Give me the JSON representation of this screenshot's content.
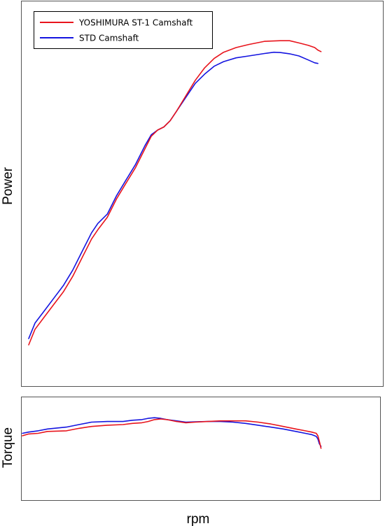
{
  "chart_data": [
    {
      "type": "line",
      "panel": "power",
      "title": "",
      "xlabel": "",
      "ylabel": "Power",
      "legend_position": "top-left",
      "grid": false,
      "x_tick_labels": false,
      "y_tick_labels": false,
      "xlim": [
        0,
        100
      ],
      "ylim": [
        0,
        100
      ],
      "series": [
        {
          "name": "YOSHIMURA ST-1 Camshaft",
          "color": "#e8141c",
          "points": [
            [
              0,
              0
            ],
            [
              2,
              5
            ],
            [
              5,
              9
            ],
            [
              8,
              13
            ],
            [
              11,
              17
            ],
            [
              14,
              22
            ],
            [
              17,
              28
            ],
            [
              20,
              34
            ],
            [
              22,
              37
            ],
            [
              25,
              41
            ],
            [
              28,
              47
            ],
            [
              31,
              52
            ],
            [
              34,
              57
            ],
            [
              37,
              63
            ],
            [
              39,
              67
            ],
            [
              41,
              69
            ],
            [
              43,
              70
            ],
            [
              45,
              72
            ],
            [
              47,
              75
            ],
            [
              50,
              80
            ],
            [
              53,
              85
            ],
            [
              56,
              89
            ],
            [
              59,
              92
            ],
            [
              62,
              94
            ],
            [
              66,
              95.5
            ],
            [
              70,
              96.5
            ],
            [
              75,
              97.5
            ],
            [
              80,
              97.7
            ],
            [
              83,
              97.7
            ],
            [
              86,
              97
            ],
            [
              89,
              96.2
            ],
            [
              91,
              95.5
            ],
            [
              92,
              94.7
            ],
            [
              93,
              94.2
            ]
          ]
        },
        {
          "name": "STD Camshaft",
          "color": "#1414e0",
          "points": [
            [
              0,
              2
            ],
            [
              2,
              7
            ],
            [
              5,
              11
            ],
            [
              8,
              15
            ],
            [
              11,
              19
            ],
            [
              14,
              24
            ],
            [
              17,
              30
            ],
            [
              20,
              36
            ],
            [
              22,
              39
            ],
            [
              25,
              42
            ],
            [
              28,
              48
            ],
            [
              31,
              53
            ],
            [
              34,
              58
            ],
            [
              37,
              64
            ],
            [
              39,
              67.5
            ],
            [
              41,
              69
            ],
            [
              43,
              70
            ],
            [
              45,
              72
            ],
            [
              47,
              75
            ],
            [
              50,
              79.5
            ],
            [
              53,
              84
            ],
            [
              56,
              87
            ],
            [
              59,
              89.5
            ],
            [
              62,
              91
            ],
            [
              66,
              92.2
            ],
            [
              70,
              92.8
            ],
            [
              75,
              93.6
            ],
            [
              78,
              94
            ],
            [
              80,
              93.9
            ],
            [
              83,
              93.5
            ],
            [
              86,
              92.8
            ],
            [
              89,
              91.5
            ],
            [
              91,
              90.6
            ],
            [
              92,
              90.4
            ]
          ]
        }
      ]
    },
    {
      "type": "line",
      "panel": "torque",
      "title": "",
      "xlabel": "rpm",
      "ylabel": "Torque",
      "grid": false,
      "x_tick_labels": false,
      "y_tick_labels": false,
      "xlim": [
        0,
        100
      ],
      "ylim": [
        0,
        100
      ],
      "series": [
        {
          "name": "YOSHIMURA ST-1 Camshaft",
          "color": "#e8141c",
          "points": [
            [
              -2,
              55
            ],
            [
              0,
              58
            ],
            [
              3,
              59
            ],
            [
              6,
              62
            ],
            [
              12,
              63
            ],
            [
              16,
              67
            ],
            [
              20,
              70
            ],
            [
              25,
              72
            ],
            [
              30,
              73
            ],
            [
              33,
              75
            ],
            [
              36,
              76
            ],
            [
              38,
              78
            ],
            [
              40,
              81
            ],
            [
              42,
              82
            ],
            [
              44,
              81
            ],
            [
              47,
              78
            ],
            [
              50,
              76
            ],
            [
              53,
              77
            ],
            [
              57,
              78
            ],
            [
              61,
              79
            ],
            [
              65,
              79
            ],
            [
              69,
              79
            ],
            [
              73,
              77
            ],
            [
              77,
              74
            ],
            [
              81,
              70
            ],
            [
              85,
              66
            ],
            [
              88,
              63
            ],
            [
              90,
              61
            ],
            [
              91.5,
              59
            ],
            [
              92,
              55
            ],
            [
              92.5,
              46
            ],
            [
              93,
              35
            ]
          ]
        },
        {
          "name": "STD Camshaft",
          "color": "#1414e0",
          "points": [
            [
              -2,
              59
            ],
            [
              0,
              61
            ],
            [
              3,
              63
            ],
            [
              6,
              66
            ],
            [
              12,
              69
            ],
            [
              16,
              73
            ],
            [
              20,
              77
            ],
            [
              25,
              78
            ],
            [
              30,
              78
            ],
            [
              33,
              80
            ],
            [
              36,
              81
            ],
            [
              38,
              83
            ],
            [
              40,
              84
            ],
            [
              42,
              83
            ],
            [
              44,
              81
            ],
            [
              47,
              79
            ],
            [
              50,
              77
            ],
            [
              53,
              77.5
            ],
            [
              57,
              78
            ],
            [
              61,
              78
            ],
            [
              65,
              77
            ],
            [
              69,
              75
            ],
            [
              73,
              72
            ],
            [
              77,
              69
            ],
            [
              81,
              66
            ],
            [
              85,
              62
            ],
            [
              88,
              59
            ],
            [
              90,
              57
            ],
            [
              91.5,
              54
            ],
            [
              92,
              50
            ],
            [
              92.5,
              42
            ],
            [
              93,
              38
            ]
          ]
        }
      ]
    }
  ]
}
